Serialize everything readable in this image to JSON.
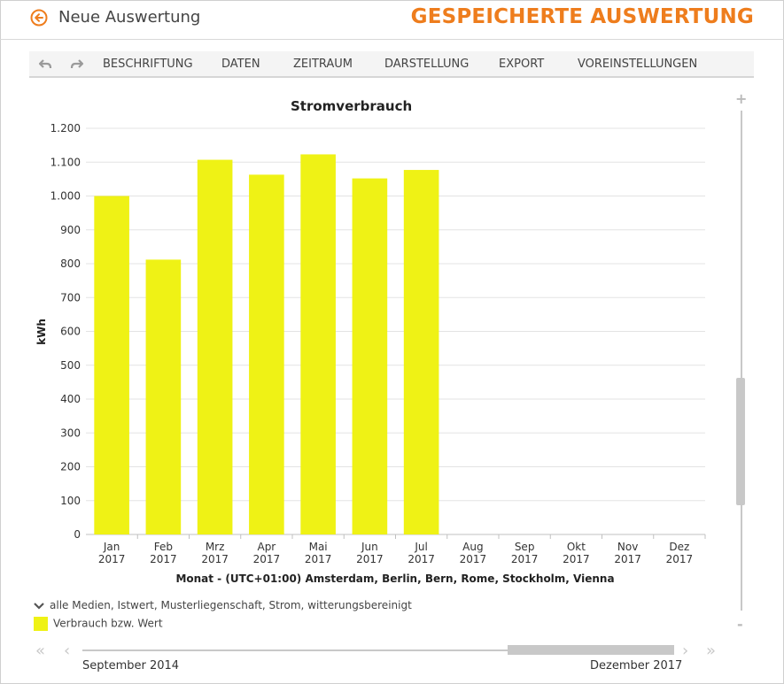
{
  "header": {
    "back_label": "Neue Auswertung",
    "saved_title": "GESPEICHERTE AUSWERTUNG",
    "accent_color": "#ee7d1d"
  },
  "toolbar": {
    "undo_icon": "undo-icon",
    "redo_icon": "redo-icon",
    "items": [
      "BESCHRIFTUNG",
      "DATEN",
      "ZEITRAUM",
      "DARSTELLUNG",
      "EXPORT",
      "VOREINSTELLUNGEN"
    ]
  },
  "chart_data": {
    "type": "bar",
    "title": "Stromverbrauch",
    "ylabel": "kWh",
    "xlabel": "Monat - (UTC+01:00) Amsterdam, Berlin, Bern, Rome, Stockholm, Vienna",
    "categories": [
      "Jan 2017",
      "Feb 2017",
      "Mrz 2017",
      "Apr 2017",
      "Mai 2017",
      "Jun 2017",
      "Jul 2017",
      "Aug 2017",
      "Sep 2017",
      "Okt 2017",
      "Nov 2017",
      "Dez 2017"
    ],
    "category_lines": [
      [
        "Jan",
        "2017"
      ],
      [
        "Feb",
        "2017"
      ],
      [
        "Mrz",
        "2017"
      ],
      [
        "Apr",
        "2017"
      ],
      [
        "Mai",
        "2017"
      ],
      [
        "Jun",
        "2017"
      ],
      [
        "Jul",
        "2017"
      ],
      [
        "Aug",
        "2017"
      ],
      [
        "Sep",
        "2017"
      ],
      [
        "Okt",
        "2017"
      ],
      [
        "Nov",
        "2017"
      ],
      [
        "Dez",
        "2017"
      ]
    ],
    "series": [
      {
        "name": "Verbrauch bzw. Wert",
        "color": "#eff215",
        "values": [
          1000,
          812,
          1107,
          1063,
          1123,
          1052,
          1077,
          null,
          null,
          null,
          null,
          null
        ]
      }
    ],
    "ylim": [
      0,
      1200
    ],
    "yticks": [
      0,
      100,
      200,
      300,
      400,
      500,
      600,
      700,
      800,
      900,
      1000,
      1100,
      1200
    ],
    "ytick_labels": [
      "0",
      "100",
      "200",
      "300",
      "400",
      "500",
      "600",
      "700",
      "800",
      "900",
      "1.000",
      "1.100",
      "1.200"
    ],
    "grid": true,
    "legend_position": "bottom-left"
  },
  "legend": {
    "group_label": "alle Medien, Istwert, Musterliegenschaft, Strom, witterungsbereinigt",
    "series_label": "Verbrauch bzw. Wert"
  },
  "navigator": {
    "start_label": "September 2014",
    "end_label": "Dezember 2017",
    "first_icon": "double-chevron-left-icon",
    "prev_icon": "chevron-left-icon",
    "next_icon": "chevron-right-icon",
    "last_icon": "double-chevron-right-icon"
  },
  "zoom": {
    "plus_label": "+",
    "minus_label": "-"
  }
}
